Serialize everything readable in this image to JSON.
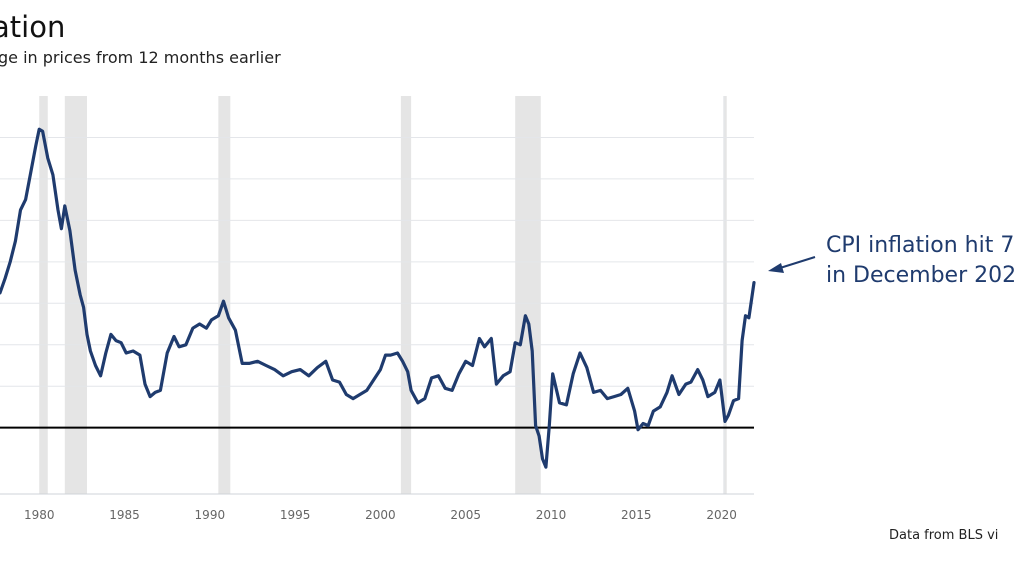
{
  "chart_data": {
    "type": "line",
    "title": "ation",
    "subtitle": "ge in prices from 12 months earlier",
    "source_note": "Data from BLS vi",
    "callout": {
      "line1": "CPI inflation hit 7",
      "line2": "in December 202"
    },
    "xlim": [
      1977.7,
      2021.9
    ],
    "ylim": [
      -3.2,
      16.0
    ],
    "x_ticks": [
      1980,
      1985,
      1990,
      1995,
      2000,
      2005,
      2010,
      2015,
      2020
    ],
    "x_tick_labels": [
      "1980",
      "1985",
      "1990",
      "1995",
      "2000",
      "2005",
      "2010",
      "2015",
      "2020"
    ],
    "y_gridlines": [
      0,
      2,
      4,
      6,
      8,
      10,
      12,
      14
    ],
    "zero_line": 0,
    "grid": true,
    "colors": {
      "series": "#1f3b6e",
      "grid": "#e4e6ea",
      "recession": "#e5e5e5",
      "zero": "#000000",
      "callout": "#1f3b6e"
    },
    "recessions": [
      [
        1980.0,
        1980.5
      ],
      [
        1981.5,
        1982.8
      ],
      [
        1990.5,
        1991.2
      ],
      [
        2001.2,
        2001.8
      ],
      [
        2007.9,
        2009.4
      ],
      [
        2020.1,
        2020.3
      ]
    ],
    "series": [
      {
        "x": [
          1977.7,
          1978.0,
          1978.3,
          1978.6,
          1978.9,
          1979.2,
          1979.5,
          1979.8,
          1980.0,
          1980.2,
          1980.5,
          1980.8,
          1981.1,
          1981.3,
          1981.5,
          1981.8,
          1982.1,
          1982.4,
          1982.6,
          1982.8,
          1983.0,
          1983.3,
          1983.6,
          1983.9,
          1984.2,
          1984.5,
          1984.8,
          1985.1,
          1985.5,
          1985.9,
          1986.2,
          1986.5,
          1986.8,
          1987.1,
          1987.5,
          1987.9,
          1988.2,
          1988.6,
          1989.0,
          1989.4,
          1989.8,
          1990.1,
          1990.5,
          1990.8,
          1991.1,
          1991.5,
          1991.9,
          1992.3,
          1992.8,
          1993.3,
          1993.8,
          1994.3,
          1994.8,
          1995.3,
          1995.8,
          1996.3,
          1996.8,
          1997.2,
          1997.6,
          1998.0,
          1998.4,
          1998.8,
          1999.2,
          1999.6,
          2000.0,
          2000.3,
          2000.6,
          2001.0,
          2001.3,
          2001.6,
          2001.8,
          2002.2,
          2002.6,
          2003.0,
          2003.4,
          2003.8,
          2004.2,
          2004.6,
          2005.0,
          2005.4,
          2005.8,
          2006.1,
          2006.5,
          2006.8,
          2007.2,
          2007.6,
          2007.9,
          2008.2,
          2008.5,
          2008.7,
          2008.9,
          2009.1,
          2009.3,
          2009.5,
          2009.7,
          2009.9,
          2010.1,
          2010.5,
          2010.9,
          2011.3,
          2011.7,
          2012.1,
          2012.5,
          2012.9,
          2013.3,
          2013.7,
          2014.1,
          2014.5,
          2014.9,
          2015.1,
          2015.4,
          2015.7,
          2016.0,
          2016.4,
          2016.8,
          2017.1,
          2017.5,
          2017.9,
          2018.2,
          2018.6,
          2018.9,
          2019.2,
          2019.6,
          2019.9,
          2020.2,
          2020.4,
          2020.7,
          2021.0,
          2021.2,
          2021.4,
          2021.6,
          2021.9
        ],
        "y": [
          6.5,
          7.2,
          8.0,
          9.0,
          10.5,
          11.0,
          12.3,
          13.6,
          14.4,
          14.3,
          13.0,
          12.2,
          10.5,
          9.6,
          10.7,
          9.5,
          7.6,
          6.4,
          5.8,
          4.5,
          3.7,
          3.0,
          2.5,
          3.6,
          4.5,
          4.2,
          4.1,
          3.6,
          3.7,
          3.5,
          2.1,
          1.5,
          1.7,
          1.8,
          3.6,
          4.4,
          3.9,
          4.0,
          4.8,
          5.0,
          4.8,
          5.2,
          5.4,
          6.1,
          5.3,
          4.7,
          3.1,
          3.1,
          3.2,
          3.0,
          2.8,
          2.5,
          2.7,
          2.8,
          2.5,
          2.9,
          3.2,
          2.3,
          2.2,
          1.6,
          1.4,
          1.6,
          1.8,
          2.3,
          2.8,
          3.5,
          3.5,
          3.6,
          3.2,
          2.7,
          1.8,
          1.2,
          1.4,
          2.4,
          2.5,
          1.9,
          1.8,
          2.6,
          3.2,
          3.0,
          4.3,
          3.9,
          4.3,
          2.1,
          2.5,
          2.7,
          4.1,
          4.0,
          5.4,
          5.0,
          3.7,
          0.1,
          -0.4,
          -1.5,
          -1.9,
          0.1,
          2.6,
          1.2,
          1.1,
          2.6,
          3.6,
          2.9,
          1.7,
          1.8,
          1.4,
          1.5,
          1.6,
          1.9,
          0.8,
          -0.1,
          0.2,
          0.1,
          0.8,
          1.0,
          1.7,
          2.5,
          1.6,
          2.1,
          2.2,
          2.8,
          2.3,
          1.5,
          1.7,
          2.3,
          0.3,
          0.6,
          1.3,
          1.4,
          4.2,
          5.4,
          5.3,
          7.0
        ]
      }
    ]
  }
}
